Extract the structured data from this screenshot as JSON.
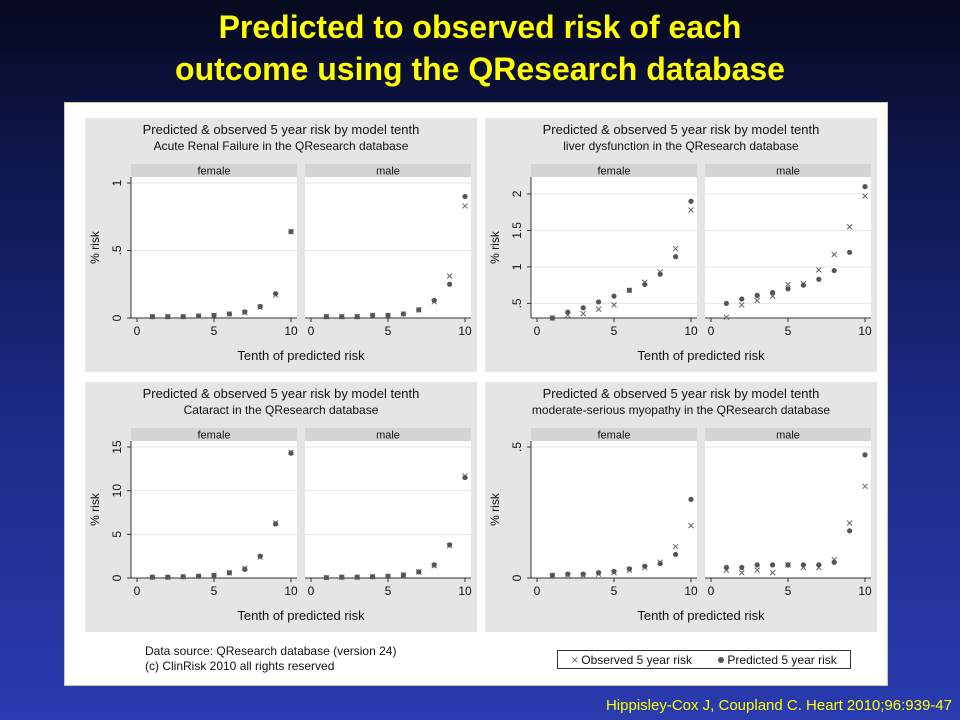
{
  "slide": {
    "title_line1": "Predicted to observed risk of each",
    "title_line2": "outcome using the QResearch database",
    "citation": "Hippisley-Cox J, Coupland C.  Heart 2010;96:939-47",
    "source_line1": "Data source: QResearch database (version 24)",
    "source_line2": "(c) ClinRisk 2010 all rights reserved",
    "legend_observed": "Observed 5 year risk",
    "legend_predicted": "Predicted 5 year risk",
    "colors": {
      "title": "#ffff00",
      "panel_bg": "#e5e5e5",
      "strip": "#d4d4d4",
      "plot_bg": "#ffffff",
      "observed": "#666666",
      "predicted": "#555555"
    }
  },
  "chart_data": [
    {
      "type": "scatter",
      "title": "Predicted & observed 5 year risk by model tenth",
      "subtitle": "Acute Renal Failure in the QResearch database",
      "xlabel": "Tenth of predicted risk",
      "ylabel": "% risk",
      "xlim": [
        0,
        10
      ],
      "ylim": [
        0,
        1
      ],
      "xticks": [
        "0",
        "5",
        "10"
      ],
      "yticks": [
        "0",
        ".5",
        "1"
      ],
      "ytick_values": [
        0,
        0.5,
        1
      ],
      "facets": [
        {
          "name": "female",
          "x": [
            1,
            2,
            3,
            4,
            5,
            6,
            7,
            8,
            9,
            10
          ],
          "observed": [
            0.01,
            0.01,
            0.01,
            0.015,
            0.02,
            0.03,
            0.04,
            0.08,
            0.17,
            0.64
          ],
          "predicted": [
            0.01,
            0.01,
            0.01,
            0.015,
            0.02,
            0.03,
            0.045,
            0.085,
            0.18,
            0.64
          ]
        },
        {
          "name": "male",
          "x": [
            1,
            2,
            3,
            4,
            5,
            6,
            7,
            8,
            9,
            10
          ],
          "observed": [
            0.01,
            0.01,
            0.01,
            0.02,
            0.02,
            0.03,
            0.06,
            0.12,
            0.31,
            0.83
          ],
          "predicted": [
            0.01,
            0.01,
            0.01,
            0.02,
            0.02,
            0.03,
            0.06,
            0.13,
            0.25,
            0.9
          ]
        }
      ]
    },
    {
      "type": "scatter",
      "title": "Predicted & observed 5 year risk by model tenth",
      "subtitle": "liver dysfunction in the QResearch database",
      "xlabel": "Tenth of predicted risk",
      "ylabel": "% risk",
      "xlim": [
        0,
        10
      ],
      "ylim": [
        0.3,
        2.15
      ],
      "xticks": [
        "0",
        "5",
        "10"
      ],
      "yticks": [
        ".5",
        "1",
        "1.5",
        "2"
      ],
      "ytick_values": [
        0.5,
        1,
        1.5,
        2
      ],
      "facets": [
        {
          "name": "female",
          "x": [
            1,
            2,
            3,
            4,
            5,
            6,
            7,
            8,
            9,
            10
          ],
          "observed": [
            0.3,
            0.34,
            0.36,
            0.42,
            0.48,
            0.68,
            0.79,
            0.93,
            1.25,
            1.78
          ],
          "predicted": [
            0.3,
            0.38,
            0.44,
            0.52,
            0.6,
            0.68,
            0.76,
            0.9,
            1.14,
            1.9
          ]
        },
        {
          "name": "male",
          "x": [
            1,
            2,
            3,
            4,
            5,
            6,
            7,
            8,
            9,
            10
          ],
          "observed": [
            0.31,
            0.48,
            0.54,
            0.6,
            0.76,
            0.77,
            0.96,
            1.17,
            1.55,
            1.97
          ],
          "predicted": [
            0.5,
            0.56,
            0.61,
            0.65,
            0.7,
            0.75,
            0.83,
            0.95,
            1.2,
            2.1
          ]
        }
      ]
    },
    {
      "type": "scatter",
      "title": "Predicted & observed 5 year risk by model tenth",
      "subtitle": "Cataract in the QResearch database",
      "xlabel": "Tenth of predicted risk",
      "ylabel": "% risk",
      "xlim": [
        0,
        10
      ],
      "ylim": [
        0,
        15
      ],
      "xticks": [
        "0",
        "5",
        "10"
      ],
      "yticks": [
        "0",
        "5",
        "10",
        "15"
      ],
      "ytick_values": [
        0,
        5,
        10,
        15
      ],
      "facets": [
        {
          "name": "female",
          "x": [
            1,
            2,
            3,
            4,
            5,
            6,
            7,
            8,
            9,
            10
          ],
          "observed": [
            0.1,
            0.1,
            0.15,
            0.2,
            0.3,
            0.6,
            1.1,
            2.4,
            6.3,
            14.4
          ],
          "predicted": [
            0.1,
            0.1,
            0.15,
            0.2,
            0.3,
            0.6,
            1.0,
            2.5,
            6.2,
            14.3
          ]
        },
        {
          "name": "male",
          "x": [
            1,
            2,
            3,
            4,
            5,
            6,
            7,
            8,
            9,
            10
          ],
          "observed": [
            0.05,
            0.1,
            0.1,
            0.15,
            0.2,
            0.35,
            0.7,
            1.4,
            3.7,
            11.7
          ],
          "predicted": [
            0.05,
            0.1,
            0.1,
            0.15,
            0.2,
            0.35,
            0.7,
            1.5,
            3.8,
            11.5
          ]
        }
      ]
    },
    {
      "type": "scatter",
      "title": "Predicted & observed 5 year risk by model tenth",
      "subtitle": "moderate-serious myopathy in the QResearch database",
      "xlabel": "Tenth of predicted risk",
      "ylabel": "% risk",
      "xlim": [
        0,
        10
      ],
      "ylim": [
        0,
        0.5
      ],
      "xticks": [
        "0",
        "5",
        "10"
      ],
      "yticks": [
        "0",
        ".5"
      ],
      "ytick_values": [
        0,
        0.5
      ],
      "facets": [
        {
          "name": "female",
          "x": [
            1,
            2,
            3,
            4,
            5,
            6,
            7,
            8,
            9,
            10
          ],
          "observed": [
            0.01,
            0.01,
            0.01,
            0.015,
            0.02,
            0.03,
            0.04,
            0.06,
            0.12,
            0.2
          ],
          "predicted": [
            0.01,
            0.015,
            0.015,
            0.02,
            0.025,
            0.035,
            0.045,
            0.055,
            0.09,
            0.3
          ]
        },
        {
          "name": "male",
          "x": [
            1,
            2,
            3,
            4,
            5,
            6,
            7,
            8,
            9,
            10
          ],
          "observed": [
            0.03,
            0.02,
            0.03,
            0.02,
            0.05,
            0.04,
            0.04,
            0.07,
            0.21,
            0.35
          ],
          "predicted": [
            0.04,
            0.04,
            0.05,
            0.05,
            0.05,
            0.05,
            0.05,
            0.06,
            0.18,
            0.47
          ]
        }
      ]
    }
  ]
}
